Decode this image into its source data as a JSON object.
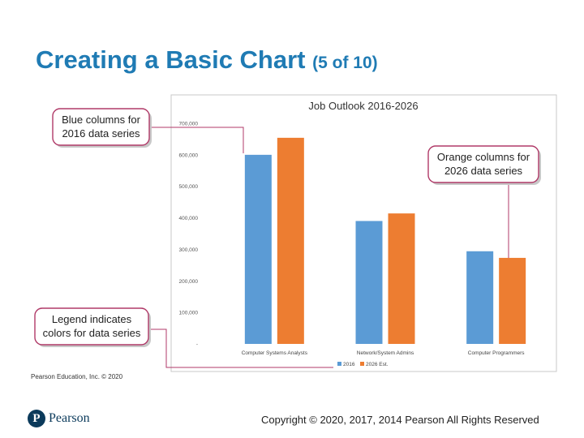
{
  "slide": {
    "title_main": "Creating a Basic Chart",
    "title_part": "(5 of 10)",
    "credit": "Pearson Education, Inc. © 2020",
    "copyright": "Copyright © 2020, 2017, 2014 Pearson All Rights Reserved",
    "logo_text": "Pearson",
    "logo_letter": "P"
  },
  "callouts": {
    "blue": [
      "Blue columns for",
      "2016 data series"
    ],
    "orange": [
      "Orange columns for",
      "2026 data series"
    ],
    "legend": [
      "Legend indicates",
      "colors for data series"
    ]
  },
  "colors": {
    "series_2016": "#5b9bd5",
    "series_2026": "#ed7d31",
    "callout_border": "#b03a68",
    "title": "#1f7bb4"
  },
  "chart_data": {
    "type": "bar",
    "title": "Job Outlook 2016-2026",
    "categories": [
      "Computer Systems Analysts",
      "Network/System Admins",
      "Computer Programmers"
    ],
    "series": [
      {
        "name": "2016",
        "values": [
          600000,
          390000,
          294000
        ]
      },
      {
        "name": "2026 Est.",
        "values": [
          654000,
          414000,
          273000
        ]
      }
    ],
    "ylim": [
      0,
      700000
    ],
    "yticks": [
      0,
      100000,
      200000,
      300000,
      400000,
      500000,
      600000,
      700000
    ],
    "ytick_labels": [
      "-",
      "100,000",
      "200,000",
      "300,000",
      "400,000",
      "500,000",
      "600,000",
      "700,000"
    ],
    "grid": false,
    "legend": "bottom"
  }
}
